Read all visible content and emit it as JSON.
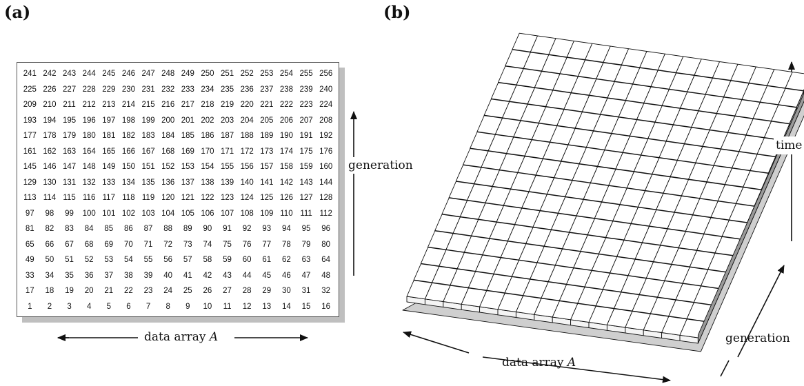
{
  "panels": {
    "a": {
      "label": "(a)",
      "grid": {
        "rows": [
          [
            "241",
            "242",
            "243",
            "244",
            "245",
            "246",
            "247",
            "248",
            "249",
            "250",
            "251",
            "252",
            "253",
            "254",
            "255",
            "256"
          ],
          [
            "225",
            "226",
            "227",
            "228",
            "229",
            "230",
            "231",
            "232",
            "233",
            "234",
            "235",
            "236",
            "237",
            "238",
            "239",
            "240"
          ],
          [
            "209",
            "210",
            "211",
            "212",
            "213",
            "214",
            "215",
            "216",
            "217",
            "218",
            "219",
            "220",
            "221",
            "222",
            "223",
            "224"
          ],
          [
            "193",
            "194",
            "195",
            "196",
            "197",
            "198",
            "199",
            "200",
            "201",
            "202",
            "203",
            "204",
            "205",
            "206",
            "207",
            "208"
          ],
          [
            "177",
            "178",
            "179",
            "180",
            "181",
            "182",
            "183",
            "184",
            "185",
            "186",
            "187",
            "188",
            "189",
            "190",
            "191",
            "192"
          ],
          [
            "161",
            "162",
            "163",
            "164",
            "165",
            "166",
            "167",
            "168",
            "169",
            "170",
            "171",
            "172",
            "173",
            "174",
            "175",
            "176"
          ],
          [
            "145",
            "146",
            "147",
            "148",
            "149",
            "150",
            "151",
            "152",
            "153",
            "154",
            "155",
            "156",
            "157",
            "158",
            "159",
            "160"
          ],
          [
            "129",
            "130",
            "131",
            "132",
            "133",
            "134",
            "135",
            "136",
            "137",
            "138",
            "139",
            "140",
            "141",
            "142",
            "143",
            "144"
          ],
          [
            "113",
            "114",
            "115",
            "116",
            "117",
            "118",
            "119",
            "120",
            "121",
            "122",
            "123",
            "124",
            "125",
            "126",
            "127",
            "128"
          ],
          [
            "97",
            "98",
            "99",
            "100",
            "101",
            "102",
            "103",
            "104",
            "105",
            "106",
            "107",
            "108",
            "109",
            "110",
            "111",
            "112"
          ],
          [
            "81",
            "82",
            "83",
            "84",
            "85",
            "86",
            "87",
            "88",
            "89",
            "90",
            "91",
            "92",
            "93",
            "94",
            "95",
            "96"
          ],
          [
            "65",
            "66",
            "67",
            "68",
            "69",
            "70",
            "71",
            "72",
            "73",
            "74",
            "75",
            "76",
            "77",
            "78",
            "79",
            "80"
          ],
          [
            "49",
            "50",
            "51",
            "52",
            "53",
            "54",
            "55",
            "56",
            "57",
            "58",
            "59",
            "60",
            "61",
            "62",
            "63",
            "64"
          ],
          [
            "33",
            "34",
            "35",
            "36",
            "37",
            "38",
            "39",
            "40",
            "41",
            "42",
            "43",
            "44",
            "45",
            "46",
            "47",
            "48"
          ],
          [
            "17",
            "18",
            "19",
            "20",
            "21",
            "22",
            "23",
            "24",
            "25",
            "26",
            "27",
            "28",
            "29",
            "30",
            "31",
            "32"
          ],
          [
            "1",
            "2",
            "3",
            "4",
            "5",
            "6",
            "7",
            "8",
            "9",
            "10",
            "11",
            "12",
            "13",
            "14",
            "15",
            "16"
          ]
        ]
      },
      "x_caption_text": "data array ",
      "x_caption_var": "A",
      "y_caption": "generation"
    },
    "b": {
      "label": "(b)",
      "x_caption_text": "data array ",
      "x_caption_var": "A",
      "depth_caption": "generation",
      "vertical_caption": "time",
      "columns": 16,
      "steps": 16
    }
  },
  "colors": {
    "ink": "#111111",
    "cube_top": "#ffffff",
    "cube_front": "#f4f4f4",
    "cube_side": "#9a9a9a",
    "base": "#cfcfcf",
    "shadow": "#bfbfbf"
  }
}
